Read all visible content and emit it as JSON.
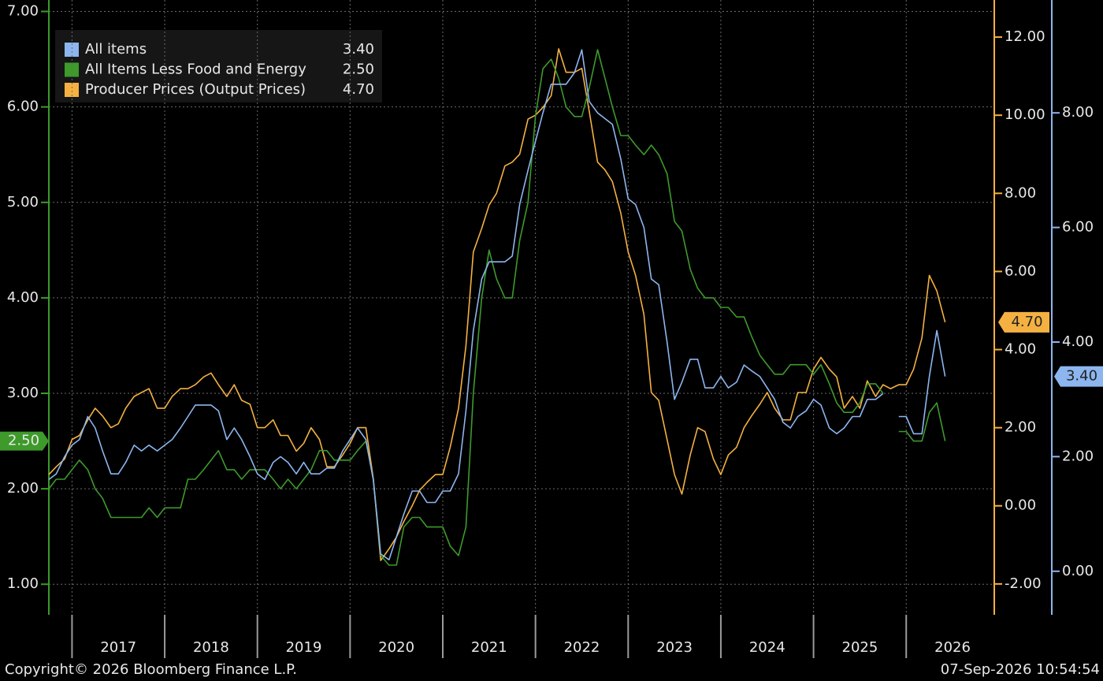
{
  "chart_data": {
    "type": "line",
    "x": [
      2016.75,
      2016.83,
      2016.92,
      2017,
      2017.08,
      2017.17,
      2017.25,
      2017.33,
      2017.42,
      2017.5,
      2017.58,
      2017.67,
      2017.75,
      2017.83,
      2017.92,
      2018,
      2018.08,
      2018.17,
      2018.25,
      2018.33,
      2018.42,
      2018.5,
      2018.58,
      2018.67,
      2018.75,
      2018.83,
      2018.92,
      2019,
      2019.08,
      2019.17,
      2019.25,
      2019.33,
      2019.42,
      2019.5,
      2019.58,
      2019.67,
      2019.75,
      2019.83,
      2019.92,
      2020,
      2020.08,
      2020.17,
      2020.25,
      2020.33,
      2020.42,
      2020.5,
      2020.58,
      2020.67,
      2020.75,
      2020.83,
      2020.92,
      2021,
      2021.08,
      2021.17,
      2021.25,
      2021.33,
      2021.42,
      2021.5,
      2021.58,
      2021.67,
      2021.75,
      2021.83,
      2021.92,
      2022,
      2022.08,
      2022.17,
      2022.25,
      2022.33,
      2022.42,
      2022.5,
      2022.58,
      2022.67,
      2022.75,
      2022.83,
      2022.92,
      2023,
      2023.08,
      2023.17,
      2023.25,
      2023.33,
      2023.42,
      2023.5,
      2023.58,
      2023.67,
      2023.75,
      2023.83,
      2023.92,
      2024,
      2024.08,
      2024.17,
      2024.25,
      2024.33,
      2024.42,
      2024.5,
      2024.58,
      2024.67,
      2024.75,
      2024.83,
      2024.92,
      2025,
      2025.08,
      2025.17,
      2025.25,
      2025.33,
      2025.42,
      2025.5,
      2025.58,
      2025.67,
      2025.75,
      2025.83,
      2025.92,
      2026,
      2026.08,
      2026.17,
      2026.25,
      2026.33,
      2026.42
    ],
    "series": [
      {
        "name": "All items",
        "color": "#8db6ef",
        "axis": "y3",
        "last_label": "3.40",
        "values": [
          1.6,
          1.7,
          2.0,
          2.2,
          2.3,
          2.7,
          2.5,
          2.1,
          1.7,
          1.7,
          1.9,
          2.2,
          2.1,
          2.2,
          2.1,
          2.2,
          2.3,
          2.5,
          2.7,
          2.9,
          2.9,
          2.9,
          2.8,
          2.3,
          2.5,
          2.3,
          2.0,
          1.7,
          1.6,
          1.9,
          2.0,
          1.9,
          1.7,
          1.9,
          1.7,
          1.7,
          1.8,
          1.8,
          2.1,
          2.3,
          2.5,
          2.3,
          1.6,
          0.3,
          0.2,
          0.6,
          1.0,
          1.4,
          1.4,
          1.2,
          1.2,
          1.4,
          1.4,
          1.7,
          2.8,
          4.2,
          5.1,
          5.4,
          5.4,
          5.4,
          5.5,
          6.4,
          7.0,
          7.5,
          8.0,
          8.5,
          8.5,
          8.5,
          8.7,
          9.1,
          8.2,
          8.0,
          7.9,
          7.8,
          7.2,
          6.5,
          6.4,
          6.0,
          5.1,
          5.0,
          4.0,
          3.0,
          3.3,
          3.7,
          3.7,
          3.2,
          3.2,
          3.4,
          3.2,
          3.3,
          3.6,
          3.5,
          3.4,
          3.2,
          3.0,
          2.6,
          2.5,
          2.7,
          2.8,
          3.0,
          2.9,
          2.5,
          2.4,
          2.5,
          2.7,
          2.7,
          3.0,
          3.0,
          3.1,
          null,
          2.7,
          2.7,
          2.4,
          2.4,
          3.4,
          4.2,
          3.4
        ]
      },
      {
        "name": "All Items Less Food and Energy",
        "color": "#3d9a2b",
        "axis": "y",
        "last_label": "2.50",
        "values": [
          2.0,
          2.1,
          2.1,
          2.2,
          2.3,
          2.2,
          2.0,
          1.9,
          1.7,
          1.7,
          1.7,
          1.7,
          1.7,
          1.8,
          1.7,
          1.8,
          1.8,
          1.8,
          2.1,
          2.1,
          2.2,
          2.3,
          2.4,
          2.2,
          2.2,
          2.1,
          2.2,
          2.2,
          2.2,
          2.1,
          2.0,
          2.1,
          2.0,
          2.1,
          2.2,
          2.4,
          2.4,
          2.3,
          2.3,
          2.3,
          2.4,
          2.5,
          2.1,
          1.3,
          1.2,
          1.2,
          1.6,
          1.7,
          1.7,
          1.6,
          1.6,
          1.6,
          1.4,
          1.3,
          1.6,
          3.0,
          4.0,
          4.5,
          4.2,
          4.0,
          4.0,
          4.6,
          5.0,
          5.9,
          6.4,
          6.5,
          6.3,
          6.0,
          5.9,
          5.9,
          6.2,
          6.6,
          6.3,
          6.0,
          5.7,
          5.7,
          5.6,
          5.5,
          5.6,
          5.5,
          5.3,
          4.8,
          4.7,
          4.3,
          4.1,
          4.0,
          4.0,
          3.9,
          3.9,
          3.8,
          3.8,
          3.6,
          3.4,
          3.3,
          3.2,
          3.2,
          3.3,
          3.3,
          3.3,
          3.2,
          3.3,
          3.1,
          2.9,
          2.8,
          2.8,
          2.9,
          3.1,
          3.1,
          3.0,
          null,
          2.6,
          2.6,
          2.5,
          2.5,
          2.8,
          2.9,
          2.5
        ]
      },
      {
        "name": "Producer Prices (Output Prices)",
        "color": "#f4b142",
        "axis": "y2",
        "last_label": "4.70",
        "values": [
          0.8,
          1.0,
          1.2,
          1.7,
          1.8,
          2.2,
          2.5,
          2.3,
          2.0,
          2.1,
          2.5,
          2.8,
          2.9,
          3.0,
          2.5,
          2.5,
          2.8,
          3.0,
          3.0,
          3.1,
          3.3,
          3.4,
          3.1,
          2.8,
          3.1,
          2.7,
          2.6,
          2.0,
          2.0,
          2.2,
          1.8,
          1.8,
          1.4,
          1.6,
          2.0,
          1.7,
          1.0,
          1.0,
          1.3,
          1.6,
          2.0,
          2.0,
          0.7,
          -1.4,
          -1.1,
          -0.8,
          -0.4,
          0.0,
          0.4,
          0.6,
          0.8,
          0.8,
          1.5,
          2.5,
          4.1,
          6.5,
          7.1,
          7.7,
          8.0,
          8.7,
          8.8,
          9.0,
          9.9,
          10.0,
          10.2,
          10.5,
          11.7,
          11.1,
          11.1,
          11.2,
          10.1,
          8.8,
          8.6,
          8.3,
          7.5,
          6.5,
          5.9,
          4.9,
          2.9,
          2.7,
          1.7,
          0.8,
          0.3,
          1.3,
          2.0,
          1.9,
          1.2,
          0.8,
          1.3,
          1.5,
          2.0,
          2.3,
          2.6,
          2.9,
          2.5,
          2.2,
          2.2,
          2.9,
          2.9,
          3.5,
          3.8,
          3.5,
          3.3,
          2.5,
          2.8,
          2.5,
          3.2,
          2.8,
          3.1,
          3.0,
          3.1,
          3.1,
          3.5,
          4.3,
          5.9,
          5.5,
          4.7
        ]
      }
    ],
    "xlim": [
      2016.75,
      2026.95
    ],
    "xticks": [
      2017,
      2018,
      2019,
      2020,
      2021,
      2022,
      2023,
      2024,
      2025,
      2026
    ],
    "ylim": [
      0.68,
      7.12
    ],
    "yticks": [
      {
        "value": 1,
        "label": "1.00"
      },
      {
        "value": 2,
        "label": "2.00"
      },
      {
        "value": 3,
        "label": "3.00"
      },
      {
        "value": 4,
        "label": "4.00"
      },
      {
        "value": 5,
        "label": "5.00"
      },
      {
        "value": 6,
        "label": "6.00"
      },
      {
        "value": 7,
        "label": "7.00"
      }
    ],
    "y2lim": [
      -2.79,
      12.95
    ],
    "y2ticks": [
      {
        "value": -2,
        "label": "-2.00"
      },
      {
        "value": 0,
        "label": "0.00"
      },
      {
        "value": 2,
        "label": "2.00"
      },
      {
        "value": 4,
        "label": "4.00"
      },
      {
        "value": 6,
        "label": "6.00"
      },
      {
        "value": 8,
        "label": "8.00"
      },
      {
        "value": 10,
        "label": "10.00"
      },
      {
        "value": 12,
        "label": "12.00"
      }
    ],
    "y3lim": [
      -0.76,
      9.97
    ],
    "y3ticks": [
      {
        "value": 0,
        "label": "0.00"
      },
      {
        "value": 2,
        "label": "2.00"
      },
      {
        "value": 4,
        "label": "4.00"
      },
      {
        "value": 6,
        "label": "6.00"
      },
      {
        "value": 8,
        "label": "8.00"
      }
    ],
    "grid": true,
    "source": "Copyright© 2026 Bloomberg Finance L.P.",
    "timestamp": "07-Sep-2026 10:54:54"
  }
}
